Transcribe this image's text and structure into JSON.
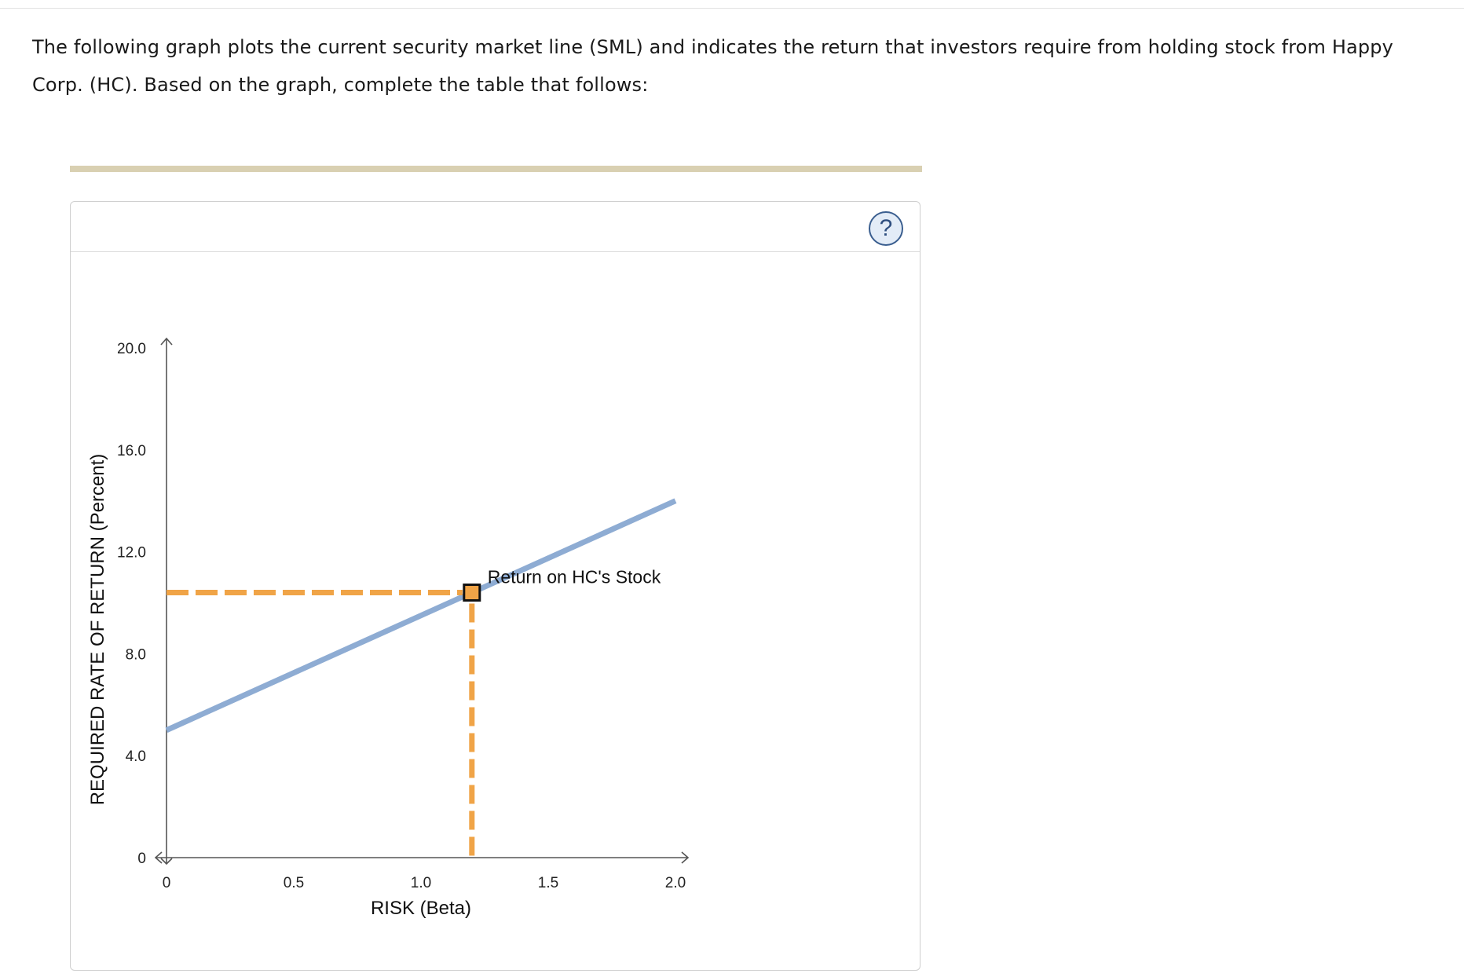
{
  "question": {
    "text": "The following graph plots the current security market line (SML) and indicates the return that investors require from holding stock from Happy Corp. (HC). Based on the graph, complete the table that follows:"
  },
  "panel": {
    "help_icon": "question-mark-icon",
    "help_label": "?"
  },
  "colors": {
    "sml_line": "#8eacd3",
    "guide_dashes": "#f0a447",
    "marker_fill": "#f0a447",
    "marker_border": "#111111",
    "axis": "#555555",
    "tan_bar": "#d9d0b2"
  },
  "chart_data": {
    "type": "line",
    "xlabel": "RISK (Beta)",
    "ylabel": "REQUIRED RATE OF RETURN (Percent)",
    "xlim": [
      0,
      2.0
    ],
    "ylim": [
      0,
      20.0
    ],
    "x_ticks": [
      {
        "value": 0,
        "label": "0"
      },
      {
        "value": 0.5,
        "label": "0.5"
      },
      {
        "value": 1.0,
        "label": "1.0"
      },
      {
        "value": 1.5,
        "label": "1.5"
      },
      {
        "value": 2.0,
        "label": "2.0"
      }
    ],
    "y_ticks": [
      {
        "value": 0,
        "label": "0"
      },
      {
        "value": 4.0,
        "label": "4.0"
      },
      {
        "value": 8.0,
        "label": "8.0"
      },
      {
        "value": 12.0,
        "label": "12.0"
      },
      {
        "value": 16.0,
        "label": "16.0"
      },
      {
        "value": 20.0,
        "label": "20.0"
      }
    ],
    "series": [
      {
        "x": [
          0,
          2.0
        ],
        "y": [
          5.0,
          14.0
        ]
      }
    ],
    "point": {
      "label": "Return on HC's Stock",
      "x": 1.2,
      "y": 10.4
    },
    "grid": false
  }
}
